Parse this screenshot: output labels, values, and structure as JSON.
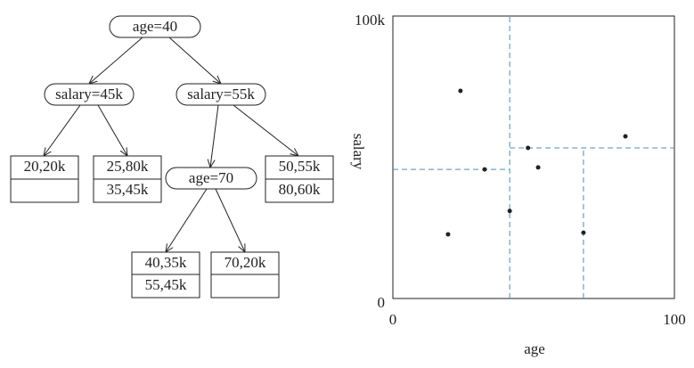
{
  "tree": {
    "nodes": [
      "age=40",
      "salary=45k",
      "salary=55k",
      "age=70"
    ],
    "leaves": [
      {
        "points": [
          "20,20k"
        ]
      },
      {
        "points": [
          "25,80k",
          "35,45k"
        ]
      },
      {
        "points": [
          "50,55k",
          "80,60k"
        ]
      },
      {
        "points": [
          "40,35k",
          "55,45k"
        ]
      },
      {
        "points": [
          "70,20k"
        ]
      }
    ]
  },
  "chart_data": {
    "type": "scatter",
    "xlabel": "age",
    "ylabel": "salary",
    "x": [
      19.6,
      24,
      32.6,
      41.5,
      48,
      51.6,
      67.7,
      82.6
    ],
    "values": [
      22700,
      73500,
      45700,
      31000,
      53300,
      46400,
      23300,
      57400
    ],
    "color": "#222222",
    "xlim": [
      0,
      100
    ],
    "ylim": [
      0,
      100000
    ],
    "xticks": [
      0,
      100
    ],
    "yticks": [
      0,
      {
        "value": 100000,
        "label": "100k"
      }
    ],
    "splits": [
      {
        "axis": "x",
        "value": 41.5,
        "span": [
          0,
          100000
        ]
      },
      {
        "axis": "y",
        "value": 45700,
        "span": [
          0,
          41.5
        ]
      },
      {
        "axis": "y",
        "value": 53300,
        "span": [
          41.5,
          100
        ]
      },
      {
        "axis": "x",
        "value": 67.7,
        "span": [
          0,
          53300
        ]
      }
    ],
    "split_color": "#4a8fb5"
  }
}
